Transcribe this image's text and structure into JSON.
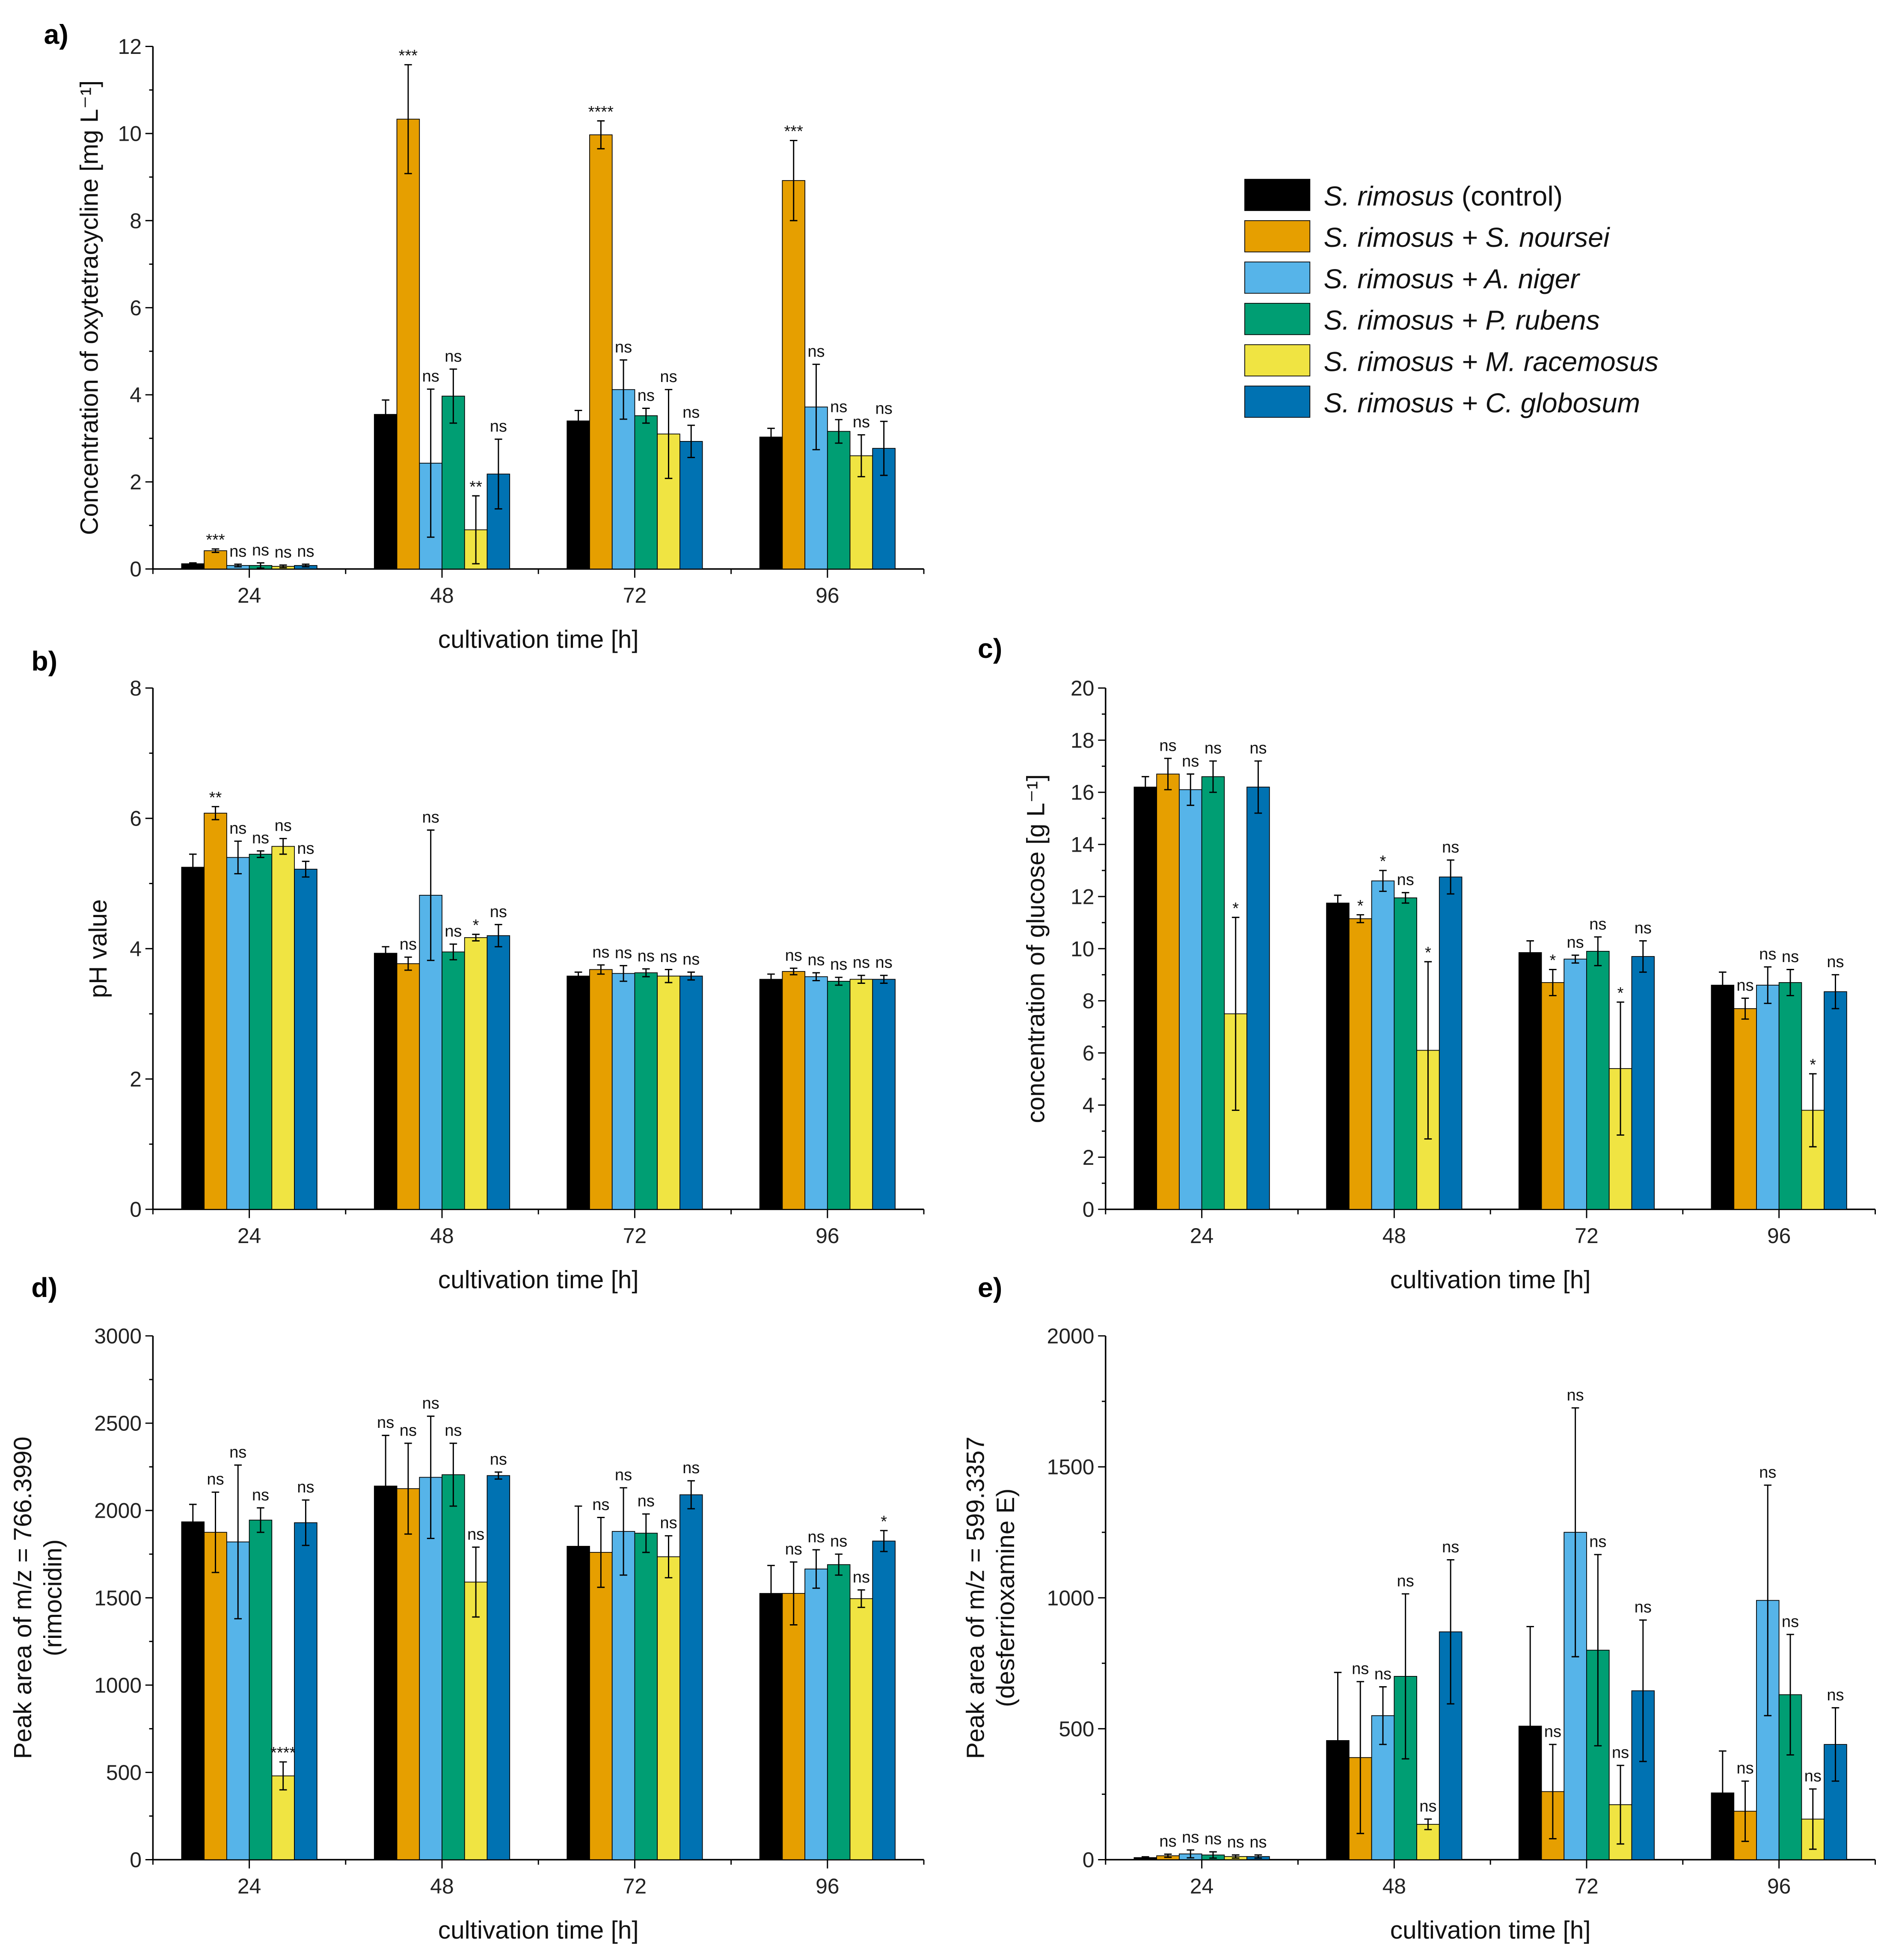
{
  "legend": [
    {
      "label": "S. rimosus (control)",
      "color": "#000000"
    },
    {
      "label": "S. rimosus + S. noursei",
      "color": "#E69F00"
    },
    {
      "label": "S. rimosus + A. niger",
      "color": "#56B4E9"
    },
    {
      "label": "S. rimosus + P. rubens",
      "color": "#009E73"
    },
    {
      "label": "S. rimosus + M. racemosus",
      "color": "#F0E442"
    },
    {
      "label": "S. rimosus + C. globosum",
      "color": "#0072B2"
    }
  ],
  "chart_data": [
    {
      "id": "a",
      "panel_label": "a)",
      "type": "bar",
      "ylabel": "Concentration of oxytetracycline [mg L⁻¹]",
      "xlabel": "cultivation time [h]",
      "categories": [
        "24",
        "48",
        "72",
        "96"
      ],
      "ylim": [
        0,
        12
      ],
      "yticks": [
        0,
        2,
        4,
        6,
        8,
        10,
        12
      ],
      "values": [
        [
          0.12,
          0.42,
          0.08,
          0.08,
          0.06,
          0.08
        ],
        [
          3.55,
          10.33,
          2.43,
          3.97,
          0.9,
          2.18
        ],
        [
          3.4,
          9.97,
          4.12,
          3.52,
          3.1,
          2.93
        ],
        [
          3.03,
          8.92,
          3.72,
          3.16,
          2.6,
          2.77
        ]
      ],
      "errors": [
        [
          0.02,
          0.04,
          0.03,
          0.06,
          0.03,
          0.03
        ],
        [
          0.33,
          1.25,
          1.7,
          0.62,
          0.78,
          0.8
        ],
        [
          0.24,
          0.32,
          0.68,
          0.17,
          1.02,
          0.37
        ],
        [
          0.2,
          0.92,
          0.98,
          0.27,
          0.48,
          0.62
        ]
      ],
      "significance": [
        [
          "",
          "***",
          "ns",
          "ns",
          "ns",
          "ns"
        ],
        [
          "",
          "***",
          "ns",
          "ns",
          "**",
          "ns"
        ],
        [
          "",
          "****",
          "ns",
          "ns",
          "ns",
          "ns"
        ],
        [
          "",
          "***",
          "ns",
          "ns",
          "ns",
          "ns"
        ]
      ]
    },
    {
      "id": "b",
      "panel_label": "b)",
      "type": "bar",
      "ylabel": "pH value",
      "xlabel": "cultivation time [h]",
      "categories": [
        "24",
        "48",
        "72",
        "96"
      ],
      "ylim": [
        0,
        8
      ],
      "yticks": [
        0,
        2,
        4,
        6,
        8
      ],
      "values": [
        [
          5.25,
          6.08,
          5.4,
          5.45,
          5.57,
          5.22
        ],
        [
          3.93,
          3.77,
          4.82,
          3.95,
          4.17,
          4.2
        ],
        [
          3.58,
          3.68,
          3.62,
          3.63,
          3.58,
          3.58
        ],
        [
          3.53,
          3.65,
          3.57,
          3.5,
          3.53,
          3.53
        ]
      ],
      "errors": [
        [
          0.2,
          0.1,
          0.25,
          0.05,
          0.12,
          0.12
        ],
        [
          0.1,
          0.1,
          1.0,
          0.12,
          0.05,
          0.17
        ],
        [
          0.06,
          0.07,
          0.12,
          0.06,
          0.1,
          0.06
        ],
        [
          0.08,
          0.05,
          0.06,
          0.06,
          0.06,
          0.06
        ]
      ],
      "significance": [
        [
          "",
          "**",
          "ns",
          "ns",
          "ns",
          "ns"
        ],
        [
          "",
          "ns",
          "ns",
          "ns",
          "*",
          "ns"
        ],
        [
          "",
          "ns",
          "ns",
          "ns",
          "ns",
          "ns"
        ],
        [
          "",
          "ns",
          "ns",
          "ns",
          "ns",
          "ns"
        ]
      ]
    },
    {
      "id": "c",
      "panel_label": "c)",
      "type": "bar",
      "ylabel": "concentration of glucose [g L⁻¹]",
      "xlabel": "cultivation time [h]",
      "categories": [
        "24",
        "48",
        "72",
        "96"
      ],
      "ylim": [
        0,
        20
      ],
      "yticks": [
        0,
        2,
        4,
        6,
        8,
        10,
        12,
        14,
        16,
        18,
        20
      ],
      "values": [
        [
          16.2,
          16.7,
          16.1,
          16.6,
          7.5,
          16.2
        ],
        [
          11.75,
          11.15,
          12.6,
          11.95,
          6.1,
          12.75
        ],
        [
          9.85,
          8.7,
          9.6,
          9.9,
          5.4,
          9.7
        ],
        [
          8.6,
          7.7,
          8.6,
          8.7,
          3.8,
          8.35
        ]
      ],
      "errors": [
        [
          0.4,
          0.6,
          0.6,
          0.6,
          3.7,
          1.0
        ],
        [
          0.3,
          0.15,
          0.4,
          0.2,
          3.4,
          0.65
        ],
        [
          0.45,
          0.5,
          0.15,
          0.55,
          2.55,
          0.6
        ],
        [
          0.5,
          0.4,
          0.7,
          0.5,
          1.4,
          0.65
        ]
      ],
      "significance": [
        [
          "",
          "ns",
          "ns",
          "ns",
          "*",
          "ns"
        ],
        [
          "",
          "*",
          "*",
          "ns",
          "*",
          "ns"
        ],
        [
          "",
          "*",
          "ns",
          "ns",
          "*",
          "ns"
        ],
        [
          "",
          "ns",
          "ns",
          "ns",
          "*",
          "ns"
        ]
      ]
    },
    {
      "id": "d",
      "panel_label": "d)",
      "type": "bar",
      "ylabel": "Peak area of m/z = 766.3990",
      "ylabel2": "(rimocidin)",
      "xlabel": "cultivation time [h]",
      "categories": [
        "24",
        "48",
        "72",
        "96"
      ],
      "ylim": [
        0,
        3000
      ],
      "yticks": [
        0,
        500,
        1000,
        1500,
        2000,
        2500,
        3000
      ],
      "values": [
        [
          1935,
          1875,
          1820,
          1945,
          480,
          1930
        ],
        [
          2140,
          2125,
          2190,
          2205,
          1590,
          2200
        ],
        [
          1795,
          1760,
          1880,
          1870,
          1735,
          2090
        ],
        [
          1525,
          1525,
          1665,
          1690,
          1495,
          1825
        ]
      ],
      "errors": [
        [
          100,
          230,
          440,
          70,
          80,
          130
        ],
        [
          290,
          260,
          350,
          180,
          200,
          20
        ],
        [
          230,
          200,
          250,
          110,
          120,
          80
        ],
        [
          160,
          180,
          110,
          60,
          50,
          60
        ]
      ],
      "significance": [
        [
          "",
          "ns",
          "ns",
          "ns",
          "****",
          "ns"
        ],
        [
          "ns",
          "ns",
          "ns",
          "ns",
          "ns",
          "ns"
        ],
        [
          "",
          "ns",
          "ns",
          "ns",
          "ns",
          "ns"
        ],
        [
          "",
          "ns",
          "ns",
          "ns",
          "ns",
          "*"
        ]
      ]
    },
    {
      "id": "e",
      "panel_label": "e)",
      "type": "bar",
      "ylabel": "Peak area of m/z = 599.3357",
      "ylabel2": "(desferrioxamine E)",
      "xlabel": "cultivation time [h]",
      "categories": [
        "24",
        "48",
        "72",
        "96"
      ],
      "ylim": [
        0,
        2000
      ],
      "yticks": [
        0,
        500,
        1000,
        1500,
        2000
      ],
      "values": [
        [
          8,
          15,
          22,
          18,
          12,
          12
        ],
        [
          455,
          390,
          550,
          700,
          135,
          870
        ],
        [
          510,
          260,
          1250,
          800,
          210,
          645
        ],
        [
          255,
          185,
          990,
          630,
          155,
          440
        ]
      ],
      "errors": [
        [
          3,
          6,
          15,
          12,
          6,
          6
        ],
        [
          260,
          290,
          110,
          315,
          20,
          275
        ],
        [
          380,
          180,
          475,
          365,
          150,
          270
        ],
        [
          160,
          115,
          440,
          230,
          115,
          140
        ]
      ],
      "significance": [
        [
          "",
          "ns",
          "ns",
          "ns",
          "ns",
          "ns"
        ],
        [
          "",
          "ns",
          "ns",
          "ns",
          "ns",
          "ns"
        ],
        [
          "",
          "ns",
          "ns",
          "ns",
          "ns",
          "ns"
        ],
        [
          "",
          "ns",
          "ns",
          "ns",
          "ns",
          "ns"
        ]
      ]
    }
  ]
}
